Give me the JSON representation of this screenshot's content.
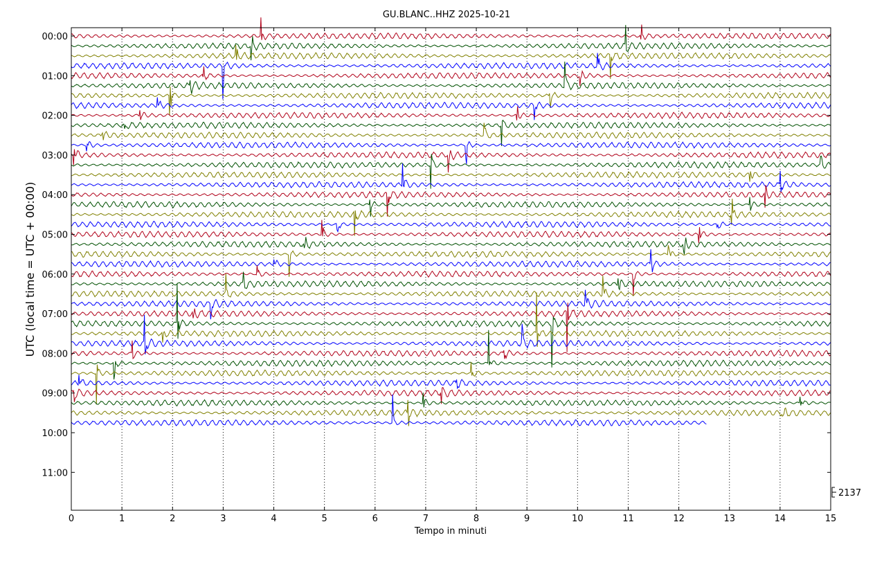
{
  "chart_data": {
    "type": "line",
    "title": "GU.BLANC..HHZ 2025-10-21",
    "xlabel": "Tempo in minuti",
    "ylabel": "UTC (local time = UTC + 00:00)",
    "xlim": [
      0,
      15
    ],
    "x_ticks": [
      "0",
      "1",
      "2",
      "3",
      "4",
      "5",
      "6",
      "7",
      "8",
      "9",
      "10",
      "11",
      "12",
      "13",
      "14",
      "15"
    ],
    "y_ticks": [
      "00:00",
      "01:00",
      "02:00",
      "03:00",
      "04:00",
      "05:00",
      "06:00",
      "07:00",
      "08:00",
      "09:00",
      "10:00",
      "11:00"
    ],
    "scale_label": "2137",
    "grid": "vertical dotted",
    "trace_interval_minutes": 15,
    "trace_colors": [
      "#b00019",
      "#005000",
      "#808000",
      "#0000ff"
    ],
    "traces_full": 39,
    "last_trace_end_minute": 12.55,
    "events": [
      {
        "trace": 0,
        "minute": 3.75
      },
      {
        "trace": 0,
        "minute": 11.25
      },
      {
        "trace": 1,
        "minute": 3.55
      },
      {
        "trace": 1,
        "minute": 10.95
      },
      {
        "trace": 2,
        "minute": 3.25
      },
      {
        "trace": 2,
        "minute": 10.65
      },
      {
        "trace": 3,
        "minute": 3.0
      },
      {
        "trace": 3,
        "minute": 10.4
      },
      {
        "trace": 4,
        "minute": 2.6
      },
      {
        "trace": 4,
        "minute": 10.05
      },
      {
        "trace": 5,
        "minute": 2.35
      },
      {
        "trace": 5,
        "minute": 9.75
      },
      {
        "trace": 6,
        "minute": 1.95
      },
      {
        "trace": 6,
        "minute": 9.45
      },
      {
        "trace": 7,
        "minute": 1.7
      },
      {
        "trace": 7,
        "minute": 9.15
      },
      {
        "trace": 8,
        "minute": 1.35
      },
      {
        "trace": 8,
        "minute": 8.8
      },
      {
        "trace": 9,
        "minute": 1.05
      },
      {
        "trace": 9,
        "minute": 8.5
      },
      {
        "trace": 10,
        "minute": 0.6
      },
      {
        "trace": 10,
        "minute": 8.15
      },
      {
        "trace": 11,
        "minute": 0.3
      },
      {
        "trace": 11,
        "minute": 7.8
      },
      {
        "trace": 12,
        "minute": 0.05
      },
      {
        "trace": 12,
        "minute": 7.45
      },
      {
        "trace": 13,
        "minute": 7.1
      },
      {
        "trace": 13,
        "minute": 14.8
      },
      {
        "trace": 14,
        "minute": 13.4
      },
      {
        "trace": 15,
        "minute": 6.55
      },
      {
        "trace": 15,
        "minute": 14.0
      },
      {
        "trace": 16,
        "minute": 6.25
      },
      {
        "trace": 16,
        "minute": 13.7
      },
      {
        "trace": 17,
        "minute": 5.9
      },
      {
        "trace": 17,
        "minute": 13.4
      },
      {
        "trace": 18,
        "minute": 5.6
      },
      {
        "trace": 18,
        "minute": 13.05
      },
      {
        "trace": 19,
        "minute": 5.25
      },
      {
        "trace": 19,
        "minute": 12.75
      },
      {
        "trace": 20,
        "minute": 4.95
      },
      {
        "trace": 20,
        "minute": 12.4
      },
      {
        "trace": 21,
        "minute": 4.6
      },
      {
        "trace": 21,
        "minute": 12.1
      },
      {
        "trace": 22,
        "minute": 4.3
      },
      {
        "trace": 22,
        "minute": 11.8
      },
      {
        "trace": 23,
        "minute": 4.0
      },
      {
        "trace": 23,
        "minute": 11.45
      },
      {
        "trace": 24,
        "minute": 3.65
      },
      {
        "trace": 24,
        "minute": 11.1
      },
      {
        "trace": 25,
        "minute": 3.4
      },
      {
        "trace": 25,
        "minute": 10.8
      },
      {
        "trace": 26,
        "minute": 3.05
      },
      {
        "trace": 26,
        "minute": 10.5
      },
      {
        "trace": 27,
        "minute": 2.75
      },
      {
        "trace": 27,
        "minute": 10.15
      },
      {
        "trace": 28,
        "minute": 2.4
      },
      {
        "trace": 28,
        "minute": 9.8
      },
      {
        "trace": 29,
        "minute": 2.1
      },
      {
        "trace": 29,
        "minute": 9.5
      },
      {
        "trace": 30,
        "minute": 1.8
      },
      {
        "trace": 30,
        "minute": 9.2
      },
      {
        "trace": 31,
        "minute": 1.45
      },
      {
        "trace": 31,
        "minute": 8.9
      },
      {
        "trace": 32,
        "minute": 1.2
      },
      {
        "trace": 32,
        "minute": 8.55
      },
      {
        "trace": 33,
        "minute": 0.85
      },
      {
        "trace": 33,
        "minute": 8.25
      },
      {
        "trace": 34,
        "minute": 0.5
      },
      {
        "trace": 34,
        "minute": 7.9
      },
      {
        "trace": 35,
        "minute": 0.15
      },
      {
        "trace": 35,
        "minute": 7.6
      },
      {
        "trace": 36,
        "minute": 0.05
      },
      {
        "trace": 36,
        "minute": 7.3
      },
      {
        "trace": 37,
        "minute": 6.95
      },
      {
        "trace": 37,
        "minute": 14.4
      },
      {
        "trace": 38,
        "minute": 6.65
      },
      {
        "trace": 38,
        "minute": 14.05
      },
      {
        "trace": 39,
        "minute": 6.35
      }
    ]
  }
}
